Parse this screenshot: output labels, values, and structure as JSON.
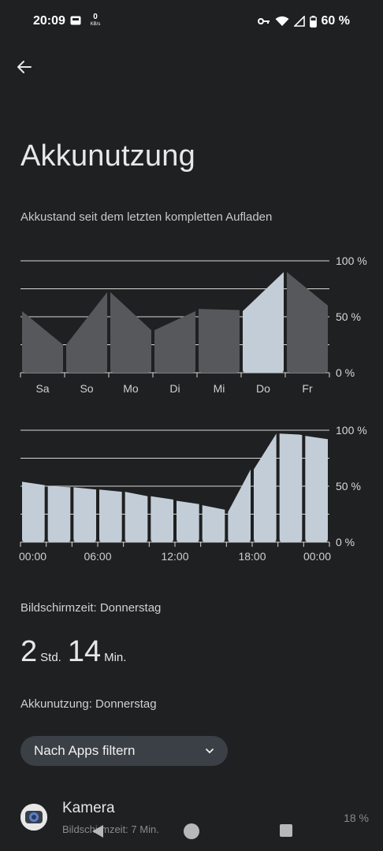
{
  "status_bar": {
    "time": "20:09",
    "net_speed_value": "0",
    "net_speed_unit": "KB/s",
    "battery_text": "60 %",
    "icons": [
      "notification-icon",
      "vpn-key-icon",
      "wifi-icon",
      "cell-signal-icon",
      "battery-icon"
    ]
  },
  "page": {
    "title": "Akkunutzung",
    "subtitle": "Akkustand seit dem letzten kompletten Aufladen"
  },
  "chart_data": [
    {
      "type": "area",
      "id": "weekly",
      "categories": [
        "Sa",
        "So",
        "Mo",
        "Di",
        "Mi",
        "Do",
        "Fr"
      ],
      "segments": [
        {
          "category": "Sa",
          "start": 55,
          "end": 25
        },
        {
          "category": "So",
          "start": 25,
          "end": 72
        },
        {
          "category": "Mo",
          "start": 72,
          "end": 38
        },
        {
          "category": "Di",
          "start": 38,
          "end": 55
        },
        {
          "category": "Mi",
          "start": 57,
          "end": 56
        },
        {
          "category": "Do",
          "start": 55,
          "end": 90
        },
        {
          "category": "Fr",
          "start": 90,
          "end": 60
        }
      ],
      "highlighted": "Do",
      "ytick_labels": [
        "100 %",
        "50 %",
        "0 %"
      ],
      "ylim": [
        0,
        100
      ]
    },
    {
      "type": "area",
      "id": "daily",
      "xtick_labels": [
        "00:00",
        "06:00",
        "12:00",
        "18:00",
        "00:00"
      ],
      "segments": [
        {
          "start": 54,
          "end": 51
        },
        {
          "start": 50,
          "end": 49
        },
        {
          "start": 49,
          "end": 47
        },
        {
          "start": 47,
          "end": 45
        },
        {
          "start": 45,
          "end": 41
        },
        {
          "start": 41,
          "end": 38
        },
        {
          "start": 37,
          "end": 34
        },
        {
          "start": 33,
          "end": 29
        },
        {
          "start": 27,
          "end": 65
        },
        {
          "start": 65,
          "end": 97
        },
        {
          "start": 97,
          "end": 96
        },
        {
          "start": 95,
          "end": 92
        }
      ],
      "ytick_labels": [
        "100 %",
        "50 %",
        "0 %"
      ],
      "ylim": [
        0,
        100
      ]
    }
  ],
  "screen_time": {
    "label": "Bildschirmzeit: Donnerstag",
    "hours": "2",
    "hours_unit": "Std.",
    "minutes": "14",
    "minutes_unit": "Min."
  },
  "battery_usage": {
    "label": "Akkunutzung: Donnerstag"
  },
  "filter": {
    "label": "Nach Apps filtern"
  },
  "apps": [
    {
      "name": "Kamera",
      "subtitle": "Bildschirmzeit: 7 Min.",
      "percent": "18 %",
      "icon": "camera-icon"
    }
  ],
  "colors": {
    "background": "#1f2021",
    "bar_dim": "#56585b",
    "bar_highlight": "#c3cdd8",
    "grid": "#d8d8d8",
    "chip": "#3b4046"
  }
}
